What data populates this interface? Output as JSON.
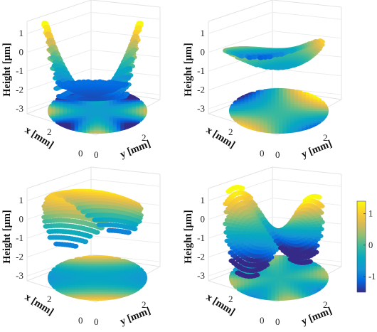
{
  "chart_data": [
    {
      "type": "surface",
      "title": "",
      "ylabel": "Height [μm]",
      "xlabel_x": "x [mm]",
      "xlabel_y": "y [mm]",
      "zticks": [
        "1",
        "0",
        "-1",
        "-2",
        "-3"
      ],
      "xticks": [
        "0",
        "2"
      ],
      "yticks": [
        "0",
        "2"
      ],
      "zlim": [
        -3.3,
        1.5
      ],
      "surface_zrange": [
        -2.6,
        1.5
      ],
      "projection_z": -3.0,
      "shape": "four-lobed saddle with central dip and high peaks at front and back"
    },
    {
      "type": "surface",
      "title": "",
      "ylabel": "Height [μm]",
      "xlabel_x": "x [mm]",
      "xlabel_y": "y [mm]",
      "zticks": [
        "1",
        "0",
        "-1",
        "-2",
        "-3"
      ],
      "xticks": [
        "0",
        "2"
      ],
      "yticks": [
        "0",
        "2"
      ],
      "zlim": [
        -3.3,
        1.5
      ],
      "surface_zrange": [
        -0.9,
        0.7
      ],
      "projection_z": -3.0,
      "shape": "gentle tilted coma-like saddle"
    },
    {
      "type": "surface",
      "title": "",
      "ylabel": "Height [μm]",
      "xlabel_x": "x [mm]",
      "xlabel_y": "y [mm]",
      "zticks": [
        "1",
        "0",
        "-1",
        "-2",
        "-3"
      ],
      "xticks": [
        "0",
        "2"
      ],
      "yticks": [
        "0",
        "2"
      ],
      "zlim": [
        -3.3,
        1.5
      ],
      "surface_zrange": [
        -1.6,
        1.5
      ],
      "projection_z": -3.0,
      "shape": "dome / bent sheet, high along one axis and low on the sides"
    },
    {
      "type": "surface",
      "title": "",
      "ylabel": "Height [μm]",
      "xlabel_x": "x [mm]",
      "xlabel_y": "y [mm]",
      "zticks": [
        "1",
        "0",
        "-1",
        "-2",
        "-3"
      ],
      "xticks": [
        "0",
        "2"
      ],
      "yticks": [
        "0",
        "2"
      ],
      "zlim": [
        -3.3,
        1.5
      ],
      "surface_zrange": [
        -1.9,
        1.3
      ],
      "projection_z": -3.0,
      "shape": "saddle (astigmatism), high at left and right corners"
    }
  ],
  "colorbar": {
    "ticks": [
      "1",
      "0",
      "-1"
    ],
    "range": [
      -1.5,
      1.4
    ],
    "colormap": "parula",
    "colors": [
      "#352a87",
      "#0268e1",
      "#1496d4",
      "#06a9c1",
      "#38b99e",
      "#92bf73",
      "#d9ba56",
      "#fcce2e",
      "#f9fb0e"
    ]
  }
}
